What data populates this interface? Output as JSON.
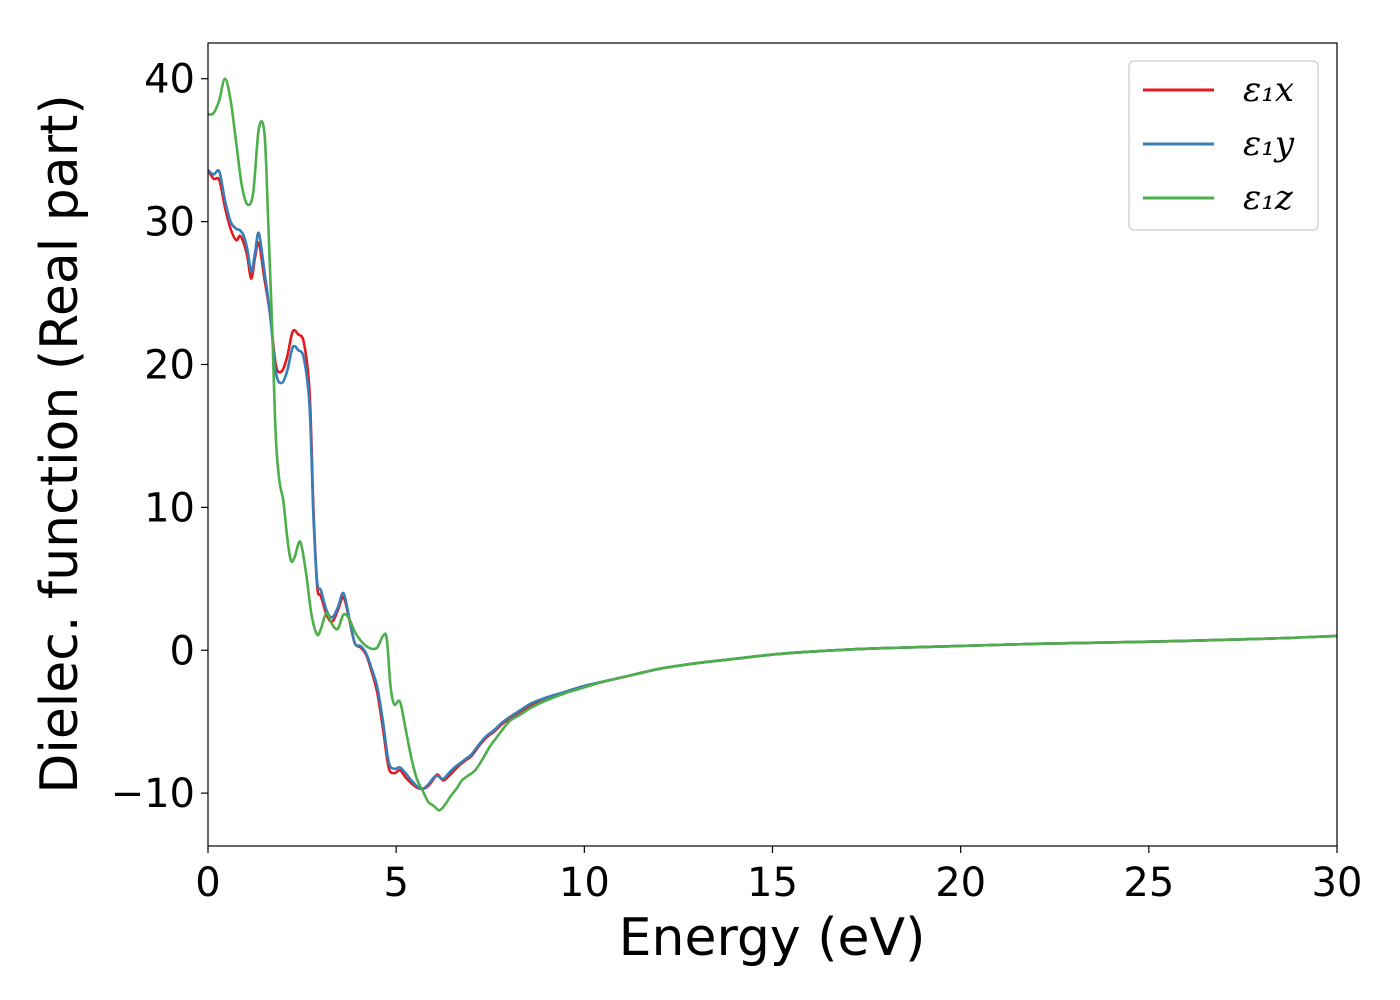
{
  "chart_data": {
    "type": "line",
    "xlabel": "Energy (eV)",
    "ylabel": "Dielec. function (Real part)",
    "xlim": [
      0,
      30
    ],
    "ylim": [
      -13.7,
      42.5
    ],
    "xticks": [
      0,
      5,
      10,
      15,
      20,
      25,
      30
    ],
    "xtick_labels": [
      "0",
      "5",
      "10",
      "15",
      "20",
      "25",
      "30"
    ],
    "yticks": [
      -10,
      0,
      10,
      20,
      30,
      40
    ],
    "ytick_labels": [
      "−10",
      "0",
      "10",
      "20",
      "30",
      "40"
    ],
    "grid": false,
    "legend_position": "top-right",
    "series": [
      {
        "name": "ε₁x",
        "color": "#e41a1c",
        "x": [
          0,
          0.15,
          0.3,
          0.45,
          0.6,
          0.75,
          0.85,
          0.95,
          1.05,
          1.15,
          1.25,
          1.35,
          1.5,
          1.65,
          1.8,
          1.95,
          2.1,
          2.25,
          2.4,
          2.55,
          2.7,
          2.8,
          2.9,
          3.0,
          3.15,
          3.3,
          3.45,
          3.6,
          3.75,
          3.9,
          4.05,
          4.2,
          4.35,
          4.5,
          4.65,
          4.8,
          4.95,
          5.1,
          5.25,
          5.4,
          5.55,
          5.7,
          5.85,
          6.0,
          6.1,
          6.25,
          6.4,
          6.55,
          6.7,
          6.85,
          7.0,
          7.2,
          7.4,
          7.6,
          7.8,
          8.0,
          8.3,
          8.6,
          9.0,
          9.5,
          10.0,
          10.5,
          11.0,
          12.0,
          13.0,
          14.0,
          15.0,
          16.0,
          17.0,
          18.0,
          20.0,
          22.0,
          25.0,
          28.0,
          30.0
        ],
        "y": [
          33.6,
          33.0,
          32.9,
          31.0,
          29.5,
          28.7,
          29.0,
          28.5,
          27.5,
          26.0,
          27.5,
          28.5,
          26.0,
          23.5,
          20.0,
          19.5,
          20.5,
          22.3,
          22.1,
          21.5,
          18.0,
          10.0,
          4.5,
          3.8,
          2.5,
          2.0,
          2.8,
          3.7,
          2.2,
          0.5,
          0.2,
          -0.3,
          -1.5,
          -3.0,
          -5.5,
          -8.2,
          -8.6,
          -8.4,
          -8.9,
          -9.3,
          -9.6,
          -9.7,
          -9.5,
          -9.0,
          -8.7,
          -9.1,
          -8.8,
          -8.4,
          -8.0,
          -7.7,
          -7.4,
          -6.7,
          -6.1,
          -5.7,
          -5.2,
          -4.8,
          -4.3,
          -3.8,
          -3.4,
          -2.9,
          -2.5,
          -2.2,
          -1.9,
          -1.3,
          -0.9,
          -0.6,
          -0.3,
          -0.1,
          0.05,
          0.15,
          0.3,
          0.45,
          0.6,
          0.8,
          1.0
        ]
      },
      {
        "name": "ε₁y",
        "color": "#377eb8",
        "x": [
          0,
          0.15,
          0.3,
          0.45,
          0.6,
          0.75,
          0.85,
          0.95,
          1.05,
          1.15,
          1.25,
          1.35,
          1.5,
          1.65,
          1.8,
          1.95,
          2.1,
          2.25,
          2.4,
          2.55,
          2.7,
          2.8,
          2.9,
          3.0,
          3.15,
          3.3,
          3.45,
          3.6,
          3.75,
          3.9,
          4.05,
          4.2,
          4.35,
          4.5,
          4.65,
          4.8,
          4.95,
          5.1,
          5.25,
          5.4,
          5.55,
          5.7,
          5.85,
          6.0,
          6.1,
          6.25,
          6.4,
          6.55,
          6.7,
          6.85,
          7.0,
          7.2,
          7.4,
          7.6,
          7.8,
          8.0,
          8.3,
          8.6,
          9.0,
          9.5,
          10.0,
          10.5,
          11.0,
          12.0,
          13.0,
          14.0,
          15.0,
          16.0,
          17.0,
          18.0,
          20.0,
          22.0,
          25.0,
          28.0,
          30.0
        ],
        "y": [
          33.6,
          33.3,
          33.5,
          31.5,
          30.0,
          29.5,
          29.4,
          29.0,
          28.0,
          26.5,
          27.8,
          29.2,
          26.5,
          23.5,
          19.5,
          18.7,
          19.5,
          21.2,
          21.0,
          20.4,
          17.0,
          9.5,
          4.8,
          4.2,
          2.8,
          2.3,
          3.0,
          4.0,
          2.3,
          0.5,
          0.3,
          -0.2,
          -1.3,
          -2.6,
          -5.0,
          -7.8,
          -8.3,
          -8.2,
          -8.6,
          -9.1,
          -9.5,
          -9.7,
          -9.4,
          -8.9,
          -8.8,
          -9.0,
          -8.6,
          -8.2,
          -7.9,
          -7.6,
          -7.3,
          -6.6,
          -6.0,
          -5.6,
          -5.1,
          -4.7,
          -4.2,
          -3.7,
          -3.3,
          -2.9,
          -2.5,
          -2.2,
          -1.9,
          -1.3,
          -0.9,
          -0.6,
          -0.3,
          -0.1,
          0.05,
          0.15,
          0.3,
          0.45,
          0.6,
          0.8,
          1.0
        ]
      },
      {
        "name": "ε₁z",
        "color": "#4daf4a",
        "x": [
          0,
          0.15,
          0.3,
          0.45,
          0.6,
          0.75,
          0.9,
          1.05,
          1.2,
          1.35,
          1.5,
          1.6,
          1.7,
          1.8,
          1.9,
          2.0,
          2.1,
          2.2,
          2.3,
          2.45,
          2.6,
          2.75,
          2.9,
          3.0,
          3.15,
          3.3,
          3.45,
          3.6,
          3.75,
          3.9,
          4.05,
          4.2,
          4.35,
          4.5,
          4.65,
          4.75,
          4.85,
          4.95,
          5.1,
          5.25,
          5.4,
          5.55,
          5.7,
          5.85,
          6.0,
          6.15,
          6.3,
          6.45,
          6.6,
          6.75,
          6.9,
          7.1,
          7.3,
          7.5,
          7.7,
          8.0,
          8.3,
          8.6,
          9.0,
          9.5,
          10.0,
          10.5,
          11.0,
          12.0,
          13.0,
          14.0,
          15.0,
          16.0,
          17.0,
          18.0,
          20.0,
          22.0,
          25.0,
          28.0,
          30.0
        ],
        "y": [
          37.5,
          37.6,
          38.5,
          40.0,
          38.5,
          35.5,
          32.5,
          31.2,
          32.0,
          36.5,
          36.2,
          30.0,
          23.0,
          15.0,
          11.8,
          10.5,
          8.0,
          6.3,
          6.5,
          7.6,
          5.5,
          2.5,
          1.1,
          1.5,
          2.6,
          1.8,
          1.5,
          2.5,
          2.2,
          1.3,
          0.7,
          0.3,
          0.1,
          0.2,
          1.0,
          0.8,
          -2.5,
          -3.8,
          -3.6,
          -5.5,
          -7.5,
          -9.0,
          -9.8,
          -10.6,
          -10.9,
          -11.2,
          -10.8,
          -10.2,
          -9.7,
          -9.1,
          -8.8,
          -8.4,
          -7.6,
          -6.7,
          -6.0,
          -5.0,
          -4.5,
          -4.0,
          -3.5,
          -3.0,
          -2.6,
          -2.2,
          -1.9,
          -1.3,
          -0.9,
          -0.6,
          -0.3,
          -0.1,
          0.05,
          0.15,
          0.3,
          0.45,
          0.6,
          0.8,
          1.0
        ]
      }
    ]
  }
}
